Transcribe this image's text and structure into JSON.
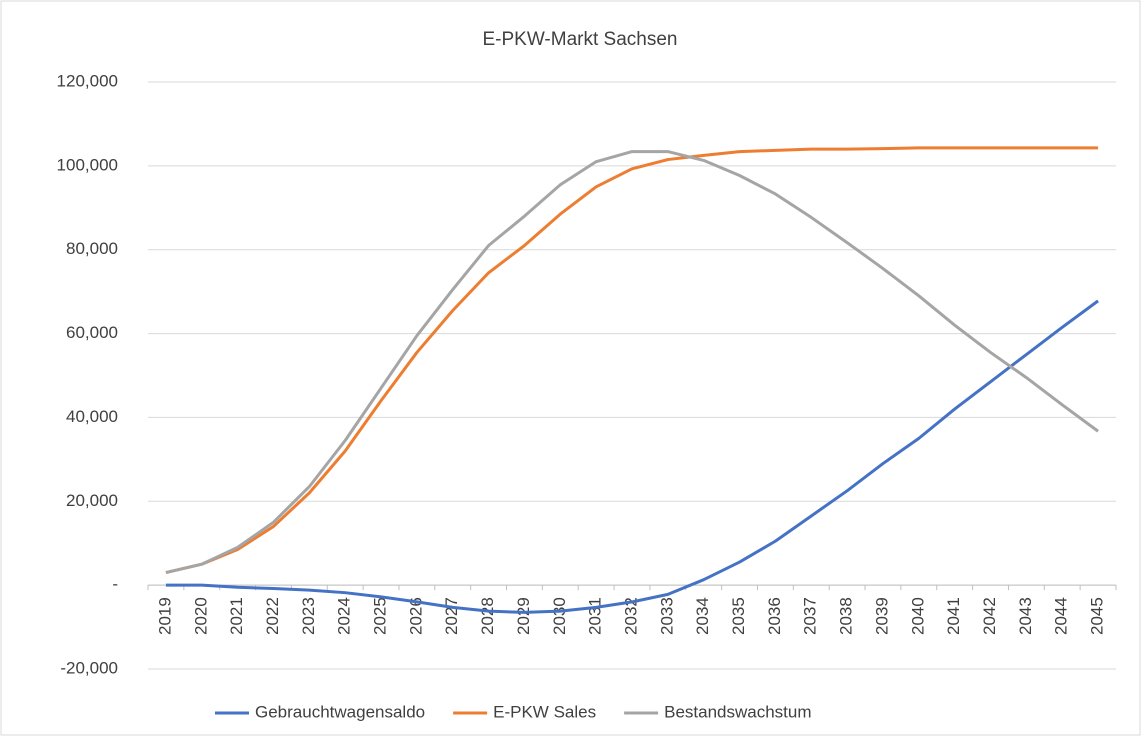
{
  "chart_data": {
    "type": "line",
    "title": "E-PKW-Markt Sachsen",
    "categories": [
      "2019",
      "2020",
      "2021",
      "2022",
      "2023",
      "2024",
      "2025",
      "2026",
      "2027",
      "2028",
      "2029",
      "2030",
      "2031",
      "2032",
      "2033",
      "2034",
      "2035",
      "2036",
      "2037",
      "2038",
      "2039",
      "2040",
      "2041",
      "2042",
      "2043",
      "2044",
      "2045"
    ],
    "series": [
      {
        "name": "Gebrauchtwagensaldo",
        "color": "#4472c4",
        "values": [
          0,
          0,
          -500,
          -800,
          -1200,
          -1800,
          -2800,
          -4000,
          -5300,
          -6200,
          -6500,
          -6200,
          -5300,
          -4000,
          -2200,
          1300,
          5500,
          10500,
          16500,
          22500,
          29000,
          35000,
          42000,
          48500,
          55000,
          61500,
          67800
        ]
      },
      {
        "name": "E-PKW Sales",
        "color": "#ed7d31",
        "values": [
          3000,
          5000,
          8500,
          14000,
          22000,
          32000,
          44000,
          55500,
          65500,
          74500,
          81000,
          88500,
          95000,
          99300,
          101500,
          102500,
          103400,
          103700,
          104000,
          104000,
          104100,
          104300,
          104300,
          104300,
          104300,
          104300,
          104300
        ]
      },
      {
        "name": "Bestandswachstum",
        "color": "#a5a5a5",
        "values": [
          3000,
          5000,
          9000,
          15000,
          23500,
          34500,
          47000,
          59500,
          70500,
          81000,
          88000,
          95500,
          101000,
          103400,
          103400,
          101300,
          97700,
          93300,
          87700,
          81700,
          75500,
          69000,
          62000,
          55500,
          49500,
          43000,
          36700
        ]
      }
    ],
    "ylim": [
      -20000,
      120000
    ],
    "yticks": [
      {
        "value": -20000,
        "label": "-20,000"
      },
      {
        "value": 0,
        "label": "-"
      },
      {
        "value": 20000,
        "label": "20,000"
      },
      {
        "value": 40000,
        "label": "40,000"
      },
      {
        "value": 60000,
        "label": "60,000"
      },
      {
        "value": 80000,
        "label": "80,000"
      },
      {
        "value": 100000,
        "label": "100,000"
      },
      {
        "value": 120000,
        "label": "120,000"
      }
    ],
    "grid": true,
    "legend": "bottom"
  }
}
